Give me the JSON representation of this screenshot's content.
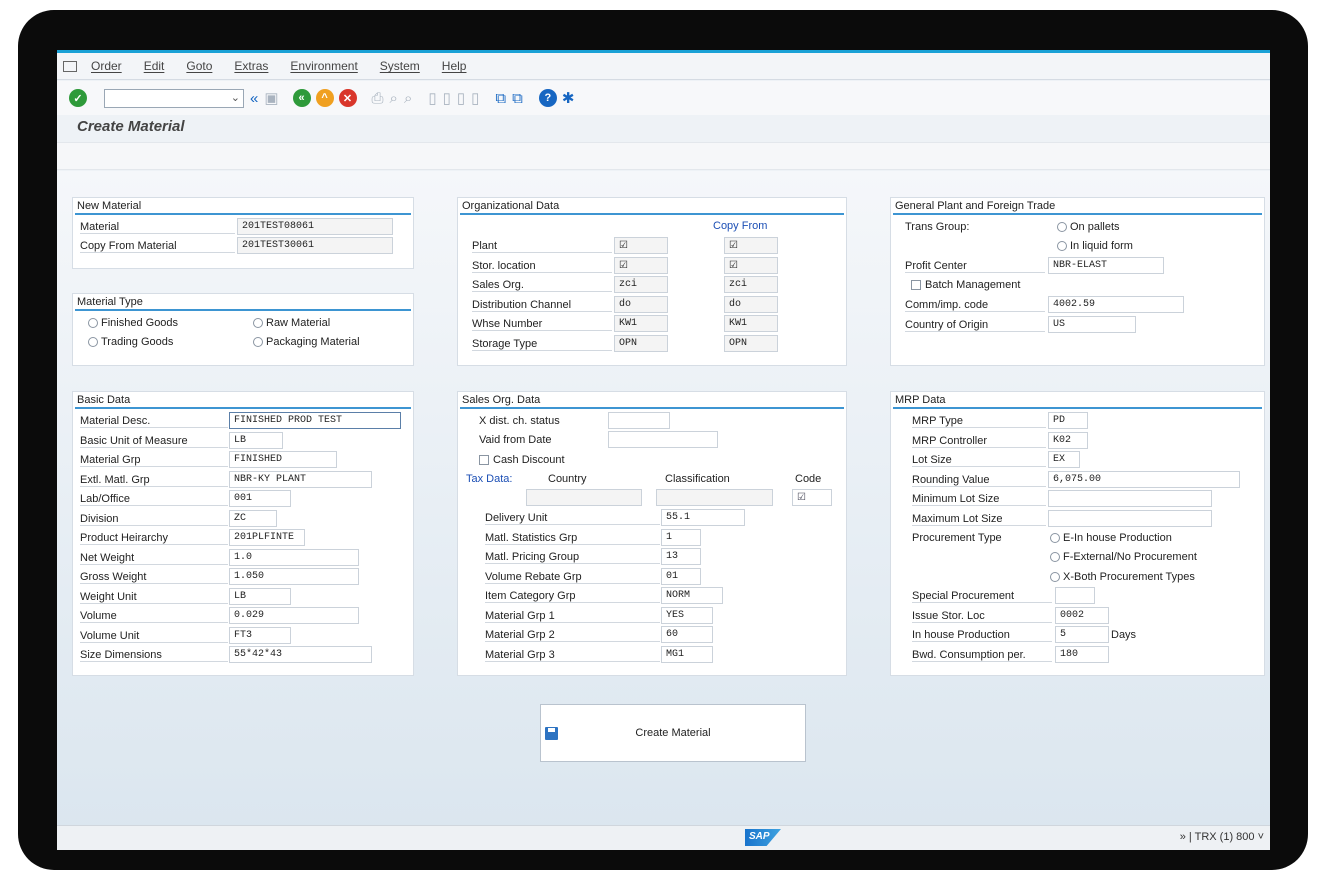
{
  "menu": [
    "Order",
    "Edit",
    "Goto",
    "Extras",
    "Environment",
    "System",
    "Help"
  ],
  "title": "Create Material",
  "panels": {
    "new_material": {
      "title": "New Material",
      "material_label": "Material",
      "material_value": "201TEST08061",
      "copy_label": "Copy From Material",
      "copy_value": "201TEST30061"
    },
    "material_type": {
      "title": "Material Type",
      "finished": "Finished Goods",
      "raw": "Raw Material",
      "trading": "Trading Goods",
      "packaging": "Packaging Material"
    },
    "org_data": {
      "title": "Organizational Data",
      "copy_from": "Copy From",
      "rows": [
        {
          "label": "Plant",
          "value": "☑",
          "copy": "☑"
        },
        {
          "label": "Stor. location",
          "value": "☑",
          "copy": "☑"
        },
        {
          "label": "Sales Org.",
          "value": "zci",
          "copy": "zci"
        },
        {
          "label": "Distribution Channel",
          "value": "do",
          "copy": "do"
        },
        {
          "label": "Whse Number",
          "value": "KW1",
          "copy": "KW1"
        },
        {
          "label": "Storage Type",
          "value": "OPN",
          "copy": "OPN"
        }
      ]
    },
    "plant_trade": {
      "title": "General Plant and Foreign Trade",
      "trans_group": "Trans Group:",
      "on_pallets": "On pallets",
      "in_liquid": "In liquid form",
      "profit_center_label": "Profit Center",
      "profit_center_value": "NBR-ELAST",
      "batch_mgmt": "Batch Management",
      "comm_label": "Comm/imp. code",
      "comm_value": "4002.59",
      "origin_label": "Country of Origin",
      "origin_value": "US"
    },
    "basic_data": {
      "title": "Basic Data",
      "rows": [
        {
          "label": "Material Desc.",
          "value": "FINISHED PROD TEST"
        },
        {
          "label": "Basic Unit of Measure",
          "value": "LB"
        },
        {
          "label": "Material Grp",
          "value": "FINISHED"
        },
        {
          "label": "Extl. Matl. Grp",
          "value": "NBR-KY PLANT"
        },
        {
          "label": "Lab/Office",
          "value": "001"
        },
        {
          "label": "Division",
          "value": "ZC"
        },
        {
          "label": "Product Heirarchy",
          "value": "201PLFINTE"
        },
        {
          "label": "Net Weight",
          "value": "1.0"
        },
        {
          "label": "Gross Weight",
          "value": "1.050"
        },
        {
          "label": "Weight Unit",
          "value": "LB"
        },
        {
          "label": "Volume",
          "value": "0.029"
        },
        {
          "label": "Volume Unit",
          "value": "FT3"
        },
        {
          "label": "Size Dimensions",
          "value": "55*42*43"
        }
      ]
    },
    "sales_org": {
      "title": "Sales Org. Data",
      "xdist_label": "X dist. ch. status",
      "valid_label": "Vaid from Date",
      "cash_discount": "Cash Discount",
      "tax_label": "Tax Data:",
      "country_hdr": "Country",
      "class_hdr": "Classification",
      "code_hdr": "Code",
      "code_value": "☑",
      "rows": [
        {
          "label": "Delivery Unit",
          "value": "55.1"
        },
        {
          "label": "Matl. Statistics Grp",
          "value": "1"
        },
        {
          "label": "Matl. Pricing Group",
          "value": "13"
        },
        {
          "label": "Volume Rebate Grp",
          "value": "01"
        },
        {
          "label": "Item Category Grp",
          "value": "NORM"
        },
        {
          "label": "Material Grp 1",
          "value": "YES"
        },
        {
          "label": "Material Grp 2",
          "value": "60"
        },
        {
          "label": "Material Grp 3",
          "value": "MG1"
        }
      ]
    },
    "mrp": {
      "title": "MRP Data",
      "rows": [
        {
          "label": "MRP Type",
          "value": "PD"
        },
        {
          "label": "MRP Controller",
          "value": "K02"
        },
        {
          "label": "Lot Size",
          "value": "EX"
        },
        {
          "label": "Rounding Value",
          "value": "6,075.00"
        },
        {
          "label": "Minimum Lot Size",
          "value": ""
        },
        {
          "label": "Maximum Lot Size",
          "value": ""
        }
      ],
      "procurement_label": "Procurement Type",
      "proc_e": "E-In house Production",
      "proc_f": "F-External/No Procurement",
      "proc_x": "X-Both Procurement Types",
      "rows2": [
        {
          "label": "Special Procurement",
          "value": ""
        },
        {
          "label": "Issue Stor. Loc",
          "value": "0002"
        },
        {
          "label": "In house Production",
          "value": "5"
        },
        {
          "label": "Bwd. Consumption per.",
          "value": "180"
        }
      ],
      "days": "Days"
    }
  },
  "create_button": "Create Material",
  "status": {
    "sap": "SAP",
    "right": "» | TRX (1) 800 ˅"
  }
}
